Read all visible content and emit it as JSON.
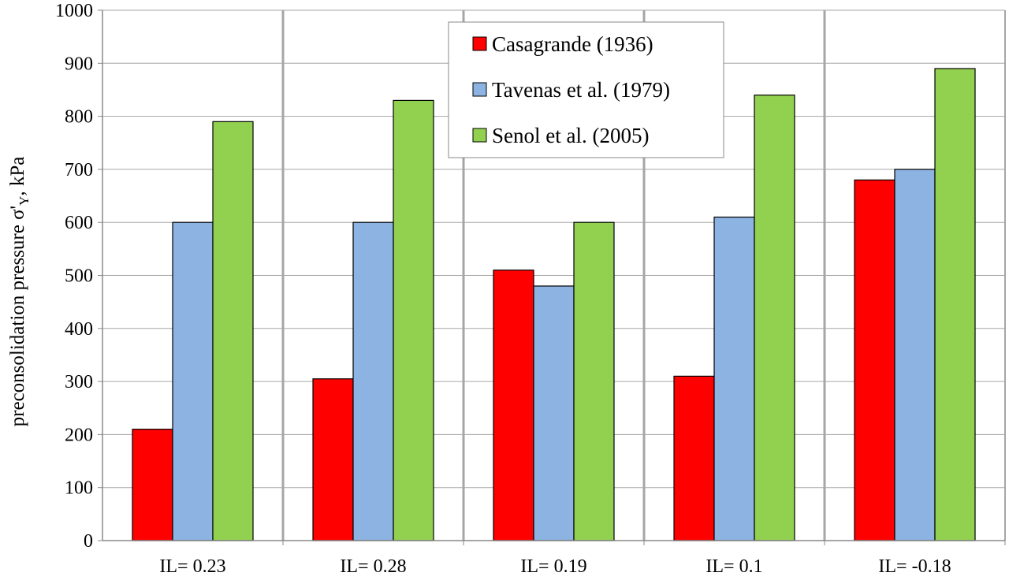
{
  "chart_data": {
    "type": "bar",
    "title": "",
    "xlabel": "",
    "ylabel": {
      "main": "preconsolidation pressure σ'",
      "sub": "Y",
      "tail": ", kPa"
    },
    "ylim": [
      0,
      1000
    ],
    "yticks": [
      "0",
      "100",
      "200",
      "300",
      "400",
      "500",
      "600",
      "700",
      "800",
      "900",
      "1000"
    ],
    "grid": true,
    "legend_position": "top-center",
    "categories": [
      "IL= 0.23",
      "IL= 0.28",
      "IL= 0.19",
      "IL= 0.1",
      "IL= -0.18"
    ],
    "series": [
      {
        "name": "Casagrande (1936)",
        "color": "#ff0000",
        "values": [
          210,
          305,
          510,
          310,
          680
        ]
      },
      {
        "name": "Tavenas et al. (1979)",
        "color": "#8db3e2",
        "values": [
          600,
          600,
          480,
          610,
          700
        ]
      },
      {
        "name": "Senol et al. (2005)",
        "color": "#92d050",
        "values": [
          790,
          830,
          600,
          840,
          890
        ]
      }
    ]
  }
}
